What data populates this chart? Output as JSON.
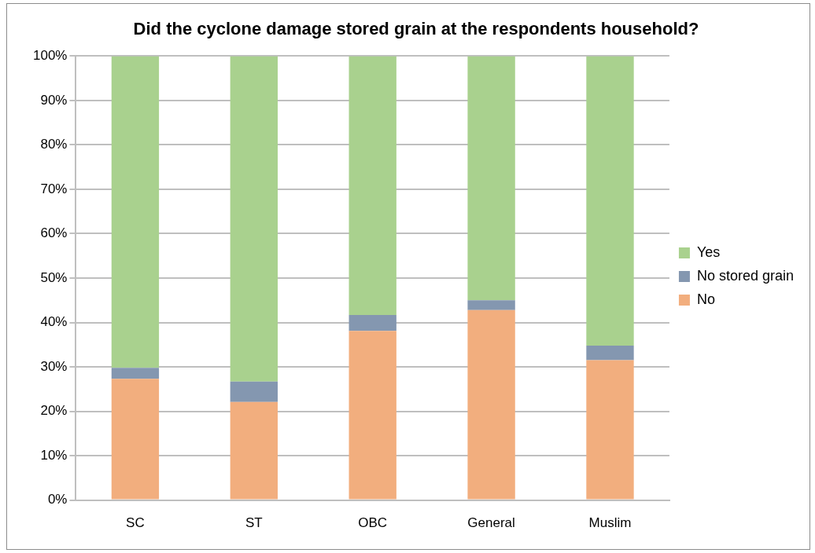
{
  "chart_data": {
    "type": "bar",
    "title": "Did the cyclone damage stored grain at the respondents household?",
    "categories": [
      "SC",
      "ST",
      "OBC",
      "General",
      "Muslim"
    ],
    "stacked": true,
    "series": [
      {
        "name": "No",
        "color": "#f2ae7e",
        "values": [
          27.3,
          22.1,
          38.1,
          42.8,
          31.5
        ]
      },
      {
        "name": "No stored grain",
        "color": "#8497b0",
        "values": [
          2.5,
          4.6,
          3.6,
          2.2,
          3.3
        ]
      },
      {
        "name": "Yes",
        "color": "#a9d18e",
        "values": [
          70.2,
          73.3,
          58.3,
          55,
          65.2
        ]
      }
    ],
    "ylim": [
      0,
      100
    ],
    "yticks": [
      {
        "value": 0,
        "label": "0%"
      },
      {
        "value": 10,
        "label": "10%"
      },
      {
        "value": 20,
        "label": "20%"
      },
      {
        "value": 30,
        "label": "30%"
      },
      {
        "value": 40,
        "label": "40%"
      },
      {
        "value": 50,
        "label": "50%"
      },
      {
        "value": 60,
        "label": "60%"
      },
      {
        "value": 70,
        "label": "70%"
      },
      {
        "value": 80,
        "label": "80%"
      },
      {
        "value": 90,
        "label": "90%"
      },
      {
        "value": 100,
        "label": "100%"
      }
    ],
    "grid": "y",
    "legend": "right"
  }
}
